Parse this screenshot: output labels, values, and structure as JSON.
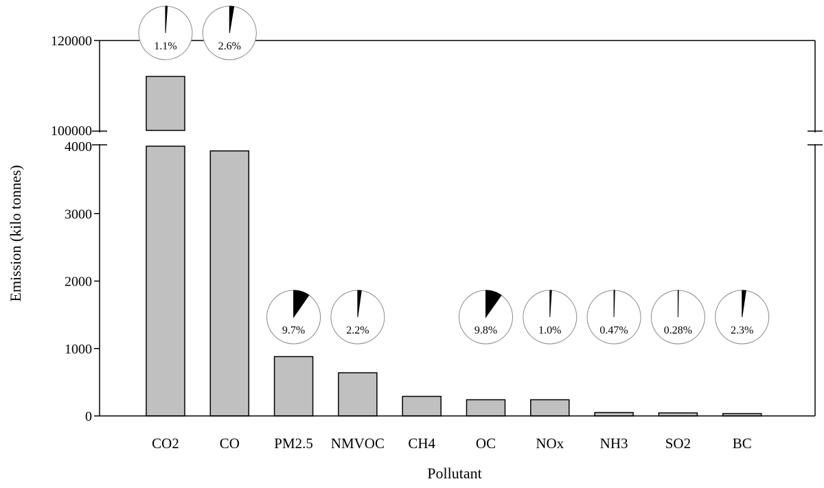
{
  "chart_data": {
    "type": "bar",
    "title": "",
    "xlabel": "Pollutant",
    "ylabel": "Emission (kilo tonnes)",
    "categories": [
      "CO2",
      "CO",
      "PM2.5",
      "NMVOC",
      "CH4",
      "OC",
      "NOx",
      "NH3",
      "SO2",
      "BC"
    ],
    "values": [
      112000,
      3930,
      880,
      640,
      290,
      240,
      240,
      50,
      45,
      35
    ],
    "axis_break": {
      "lower_range": [
        0,
        4000
      ],
      "upper_range": [
        100000,
        120000
      ]
    },
    "y_ticks_lower": [
      0,
      1000,
      2000,
      3000,
      4000
    ],
    "y_ticks_upper": [
      100000,
      120000
    ],
    "y_tick_labels_lower": [
      "0",
      "1000",
      "2000",
      "3000",
      "4000"
    ],
    "y_tick_labels_upper": [
      "100000",
      "120000"
    ],
    "share_percent": [
      1.1,
      2.6,
      9.7,
      2.2,
      null,
      9.8,
      1.0,
      0.47,
      0.28,
      2.3
    ],
    "share_labels": [
      "1.1%",
      "2.6%",
      "9.7%",
      "2.2%",
      null,
      "9.8%",
      "1.0%",
      "0.47%",
      "0.28%",
      "2.3%"
    ],
    "colors": {
      "bar_fill": "#c0c0c0",
      "pie_fill": "#000000",
      "axis": "#000000"
    }
  }
}
